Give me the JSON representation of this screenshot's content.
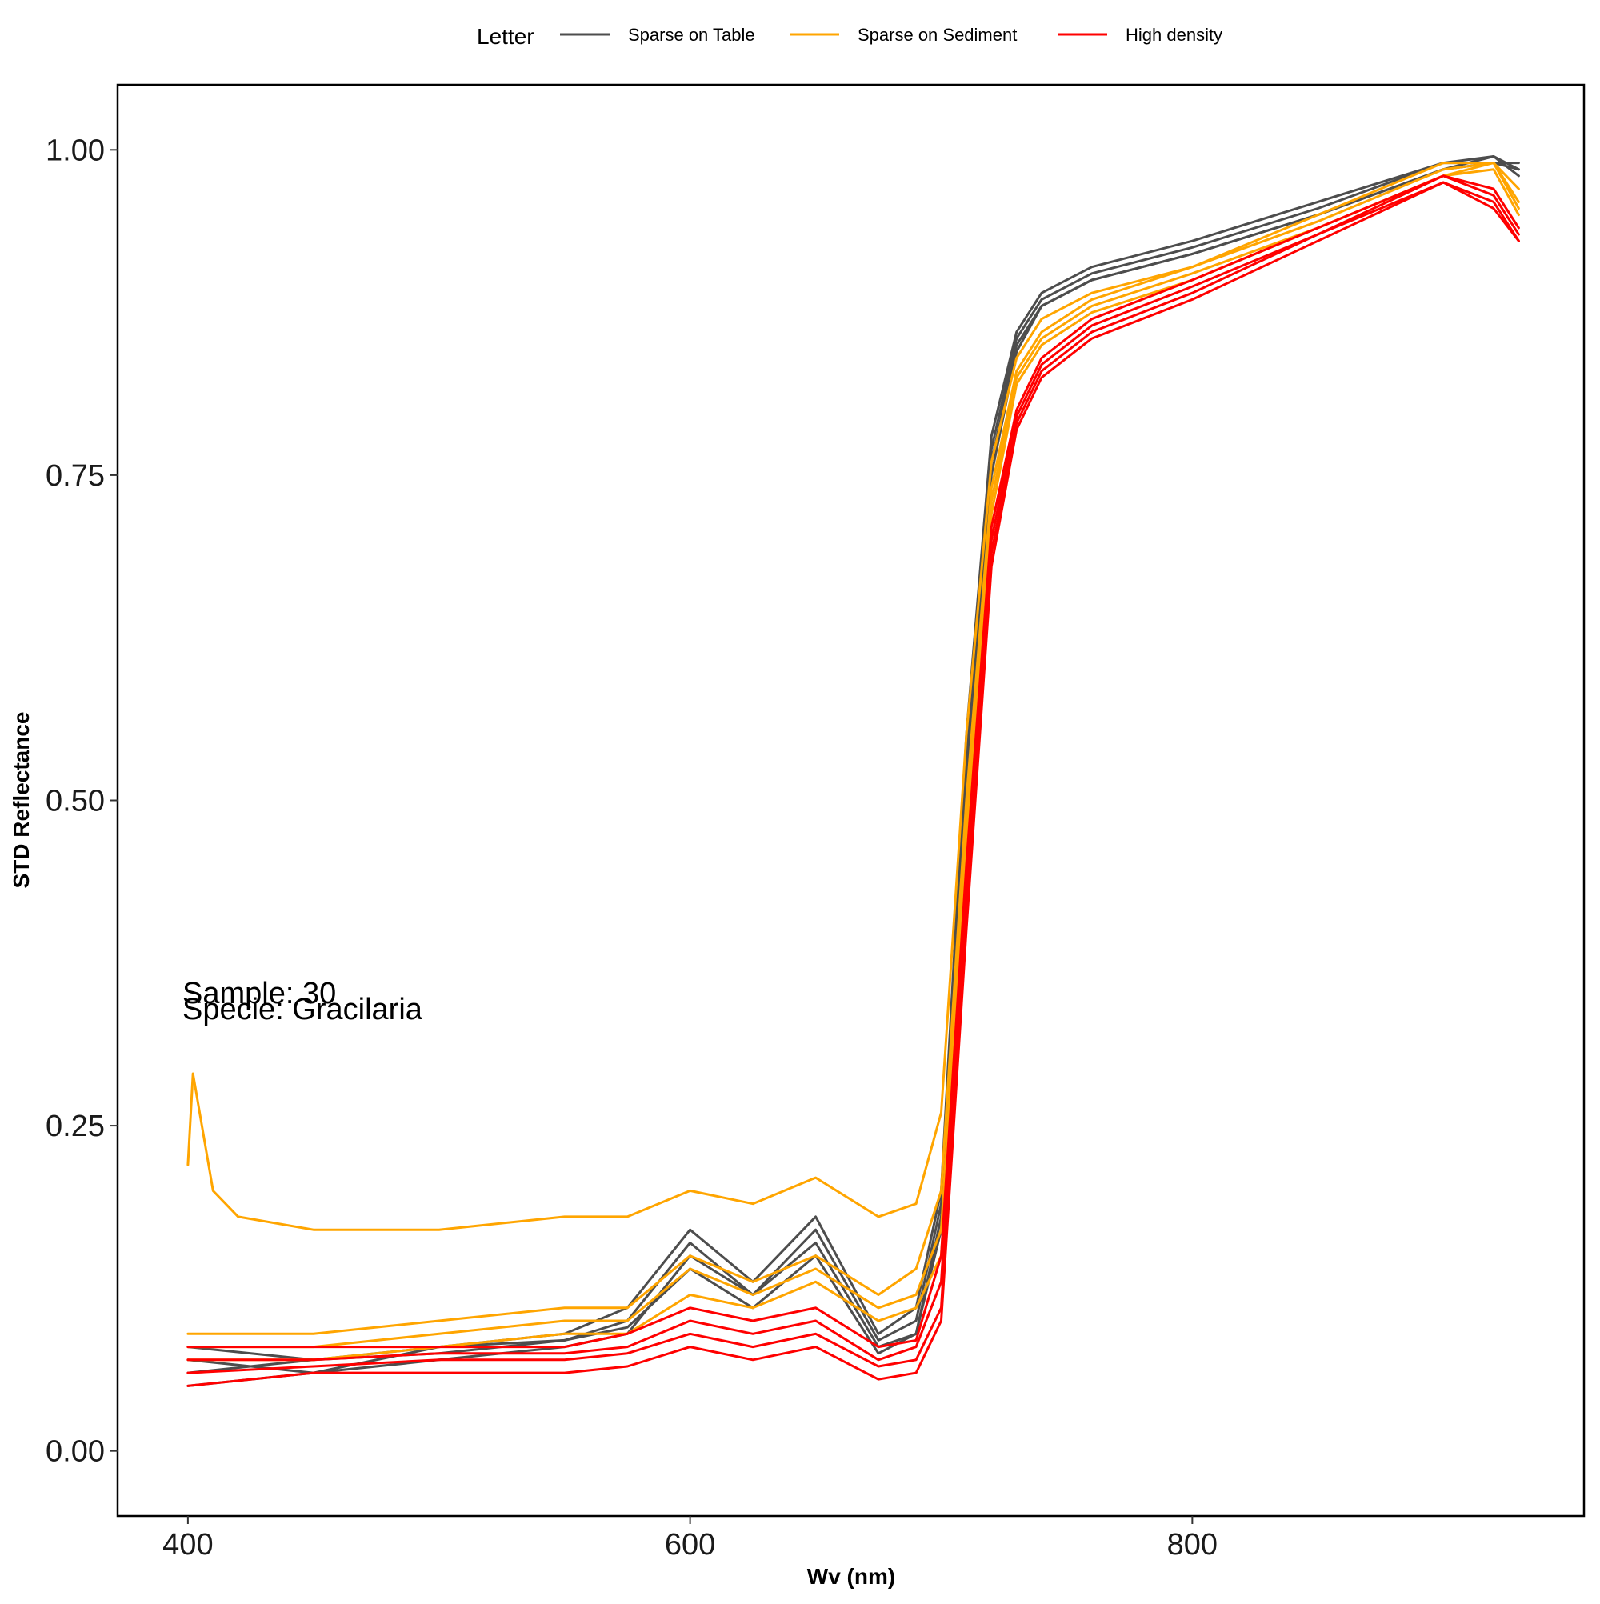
{
  "chart_data": {
    "type": "line",
    "xlabel": "Wv (nm)",
    "ylabel": "STD Reflectance",
    "xlim": [
      372,
      956
    ],
    "ylim": [
      -0.05,
      1.05
    ],
    "x_ticks": [
      400,
      600,
      800
    ],
    "x_tick_labels": [
      "400",
      "600",
      "800"
    ],
    "y_ticks": [
      0.0,
      0.25,
      0.5,
      0.75,
      1.0
    ],
    "y_tick_labels": [
      "0.00",
      "0.25",
      "0.50",
      "0.75",
      "1.00"
    ],
    "grid": false,
    "legend": {
      "title": "Letter",
      "position": "top",
      "entries": [
        {
          "label": "Sparse on Table",
          "color": "#4d4d4d"
        },
        {
          "label": "Sparse on Sediment",
          "color": "#FFA500"
        },
        {
          "label": "High density",
          "color": "#FF0000"
        }
      ]
    },
    "annotations": [
      "Sample: 30",
      "Specie: Gracilaria"
    ],
    "series": [
      {
        "group": "Sparse on Table",
        "color": "#4d4d4d",
        "x": [
          400,
          450,
          500,
          550,
          575,
          600,
          625,
          650,
          675,
          690,
          700,
          710,
          720,
          730,
          740,
          760,
          800,
          850,
          900,
          920,
          930
        ],
        "y": [
          0.07,
          0.06,
          0.08,
          0.09,
          0.11,
          0.17,
          0.13,
          0.18,
          0.09,
          0.11,
          0.2,
          0.55,
          0.78,
          0.86,
          0.89,
          0.91,
          0.93,
          0.96,
          0.99,
          0.99,
          0.985
        ]
      },
      {
        "group": "Sparse on Table",
        "color": "#4d4d4d",
        "x": [
          400,
          450,
          500,
          550,
          575,
          600,
          625,
          650,
          675,
          690,
          700,
          710,
          720,
          730,
          740,
          760,
          800,
          850,
          900,
          920,
          930
        ],
        "y": [
          0.06,
          0.07,
          0.08,
          0.085,
          0.1,
          0.16,
          0.12,
          0.17,
          0.085,
          0.1,
          0.19,
          0.53,
          0.77,
          0.855,
          0.885,
          0.905,
          0.925,
          0.955,
          0.99,
          0.995,
          0.98
        ]
      },
      {
        "group": "Sparse on Table",
        "color": "#4d4d4d",
        "x": [
          400,
          450,
          500,
          550,
          575,
          600,
          625,
          650,
          675,
          690,
          700,
          710,
          720,
          730,
          740,
          760,
          800,
          850,
          900,
          920,
          930
        ],
        "y": [
          0.05,
          0.06,
          0.07,
          0.08,
          0.09,
          0.15,
          0.12,
          0.16,
          0.08,
          0.09,
          0.18,
          0.52,
          0.76,
          0.85,
          0.88,
          0.9,
          0.92,
          0.95,
          0.985,
          0.99,
          0.99
        ]
      },
      {
        "group": "Sparse on Table",
        "color": "#4d4d4d",
        "x": [
          400,
          450,
          500,
          550,
          575,
          600,
          625,
          650,
          675,
          690,
          700,
          710,
          720,
          730,
          740,
          760,
          800,
          850,
          900,
          920,
          930
        ],
        "y": [
          0.08,
          0.07,
          0.075,
          0.085,
          0.095,
          0.14,
          0.11,
          0.15,
          0.075,
          0.09,
          0.17,
          0.5,
          0.75,
          0.845,
          0.88,
          0.9,
          0.92,
          0.95,
          0.985,
          0.995,
          0.985
        ]
      },
      {
        "group": "Sparse on Sediment",
        "color": "#FFA500",
        "x": [
          400,
          402,
          410,
          420,
          450,
          500,
          550,
          575,
          600,
          625,
          650,
          675,
          690,
          700,
          710,
          720,
          730,
          740,
          760,
          800,
          850,
          900,
          920,
          930
        ],
        "y": [
          0.22,
          0.29,
          0.2,
          0.18,
          0.17,
          0.17,
          0.18,
          0.18,
          0.2,
          0.19,
          0.21,
          0.18,
          0.19,
          0.26,
          0.55,
          0.76,
          0.84,
          0.87,
          0.89,
          0.91,
          0.95,
          0.99,
          0.99,
          0.97
        ]
      },
      {
        "group": "Sparse on Sediment",
        "color": "#FFA500",
        "x": [
          400,
          450,
          500,
          550,
          575,
          600,
          625,
          650,
          675,
          690,
          700,
          710,
          720,
          730,
          740,
          760,
          800,
          850,
          900,
          920,
          930
        ],
        "y": [
          0.09,
          0.09,
          0.1,
          0.11,
          0.11,
          0.15,
          0.13,
          0.15,
          0.12,
          0.14,
          0.2,
          0.5,
          0.74,
          0.83,
          0.86,
          0.885,
          0.91,
          0.945,
          0.985,
          0.99,
          0.96
        ]
      },
      {
        "group": "Sparse on Sediment",
        "color": "#FFA500",
        "x": [
          400,
          450,
          500,
          550,
          575,
          600,
          625,
          650,
          675,
          690,
          700,
          710,
          720,
          730,
          740,
          760,
          800,
          850,
          900,
          920,
          930
        ],
        "y": [
          0.08,
          0.08,
          0.09,
          0.1,
          0.1,
          0.14,
          0.12,
          0.14,
          0.11,
          0.12,
          0.17,
          0.48,
          0.73,
          0.825,
          0.855,
          0.88,
          0.905,
          0.94,
          0.98,
          0.99,
          0.955
        ]
      },
      {
        "group": "Sparse on Sediment",
        "color": "#FFA500",
        "x": [
          400,
          450,
          500,
          550,
          575,
          600,
          625,
          650,
          675,
          690,
          700,
          710,
          720,
          730,
          740,
          760,
          800,
          850,
          900,
          920,
          930
        ],
        "y": [
          0.07,
          0.07,
          0.08,
          0.09,
          0.09,
          0.12,
          0.11,
          0.13,
          0.1,
          0.11,
          0.15,
          0.46,
          0.72,
          0.82,
          0.85,
          0.875,
          0.9,
          0.94,
          0.98,
          0.985,
          0.95
        ]
      },
      {
        "group": "High density",
        "color": "#FF0000",
        "x": [
          400,
          450,
          500,
          550,
          575,
          600,
          625,
          650,
          675,
          690,
          700,
          710,
          720,
          730,
          740,
          760,
          800,
          850,
          900,
          920,
          930
        ],
        "y": [
          0.08,
          0.08,
          0.08,
          0.08,
          0.09,
          0.11,
          0.1,
          0.11,
          0.08,
          0.085,
          0.15,
          0.45,
          0.71,
          0.8,
          0.84,
          0.87,
          0.9,
          0.94,
          0.98,
          0.97,
          0.94
        ]
      },
      {
        "group": "High density",
        "color": "#FF0000",
        "x": [
          400,
          450,
          500,
          550,
          575,
          600,
          625,
          650,
          675,
          690,
          700,
          710,
          720,
          730,
          740,
          760,
          800,
          850,
          900,
          920,
          930
        ],
        "y": [
          0.07,
          0.07,
          0.075,
          0.075,
          0.08,
          0.1,
          0.09,
          0.1,
          0.07,
          0.08,
          0.13,
          0.43,
          0.7,
          0.795,
          0.835,
          0.865,
          0.895,
          0.935,
          0.98,
          0.965,
          0.935
        ]
      },
      {
        "group": "High density",
        "color": "#FF0000",
        "x": [
          400,
          450,
          500,
          550,
          575,
          600,
          625,
          650,
          675,
          690,
          700,
          710,
          720,
          730,
          740,
          760,
          800,
          850,
          900,
          920,
          930
        ],
        "y": [
          0.06,
          0.065,
          0.07,
          0.07,
          0.075,
          0.09,
          0.08,
          0.09,
          0.065,
          0.07,
          0.11,
          0.42,
          0.69,
          0.79,
          0.83,
          0.86,
          0.89,
          0.935,
          0.975,
          0.96,
          0.93
        ]
      },
      {
        "group": "High density",
        "color": "#FF0000",
        "x": [
          400,
          450,
          500,
          550,
          575,
          600,
          625,
          650,
          675,
          690,
          700,
          710,
          720,
          730,
          740,
          760,
          800,
          850,
          900,
          920,
          930
        ],
        "y": [
          0.05,
          0.06,
          0.06,
          0.06,
          0.065,
          0.08,
          0.07,
          0.08,
          0.055,
          0.06,
          0.1,
          0.4,
          0.68,
          0.785,
          0.825,
          0.855,
          0.885,
          0.93,
          0.975,
          0.955,
          0.93
        ]
      }
    ]
  }
}
